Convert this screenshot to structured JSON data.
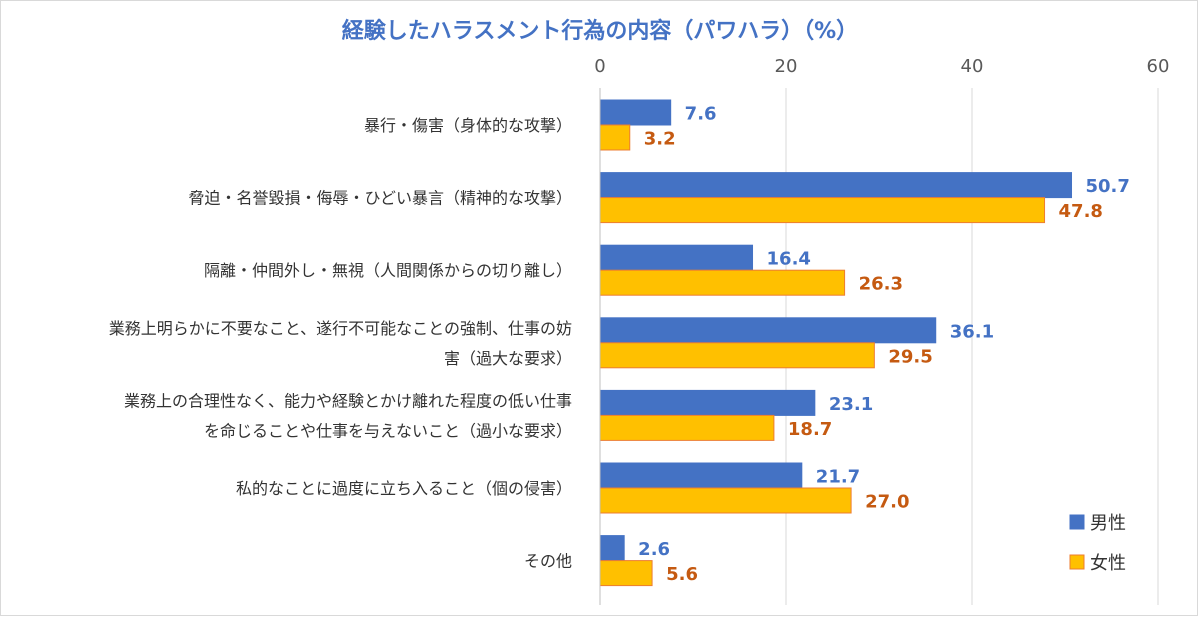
{
  "chart_data": {
    "type": "bar",
    "orientation": "horizontal",
    "title": "経験したハラスメント行為の内容（パワハラ）（%）",
    "categories": [
      [
        "暴行・傷害（身体的な攻撃）"
      ],
      [
        "脅迫・名誉毀損・侮辱・ひどい暴言（精神的な攻撃）"
      ],
      [
        "隔離・仲間外し・無視（人間関係からの切り離し）"
      ],
      [
        "業務上明らかに不要なこと、遂行不可能なことの強制、仕事の妨",
        "害（過大な要求）"
      ],
      [
        "業務上の合理性なく、能力や経験とかけ離れた程度の低い仕事",
        "を命じることや仕事を与えないこと（過小な要求）"
      ],
      [
        "私的なことに過度に立ち入ること（個の侵害）"
      ],
      [
        "その他"
      ]
    ],
    "series": [
      {
        "name": "男性",
        "values": [
          7.6,
          50.7,
          16.4,
          36.1,
          23.1,
          21.7,
          2.6
        ],
        "labels": [
          "7.6",
          "50.7",
          "16.4",
          "36.1",
          "23.1",
          "21.7",
          "2.6"
        ],
        "color": "#4472c4",
        "label_color": "#4472c4"
      },
      {
        "name": "女性",
        "values": [
          3.2,
          47.8,
          26.3,
          29.5,
          18.7,
          27.0,
          5.6
        ],
        "labels": [
          "3.2",
          "47.8",
          "26.3",
          "29.5",
          "18.7",
          "27.0",
          "5.6"
        ],
        "color": "#ffc000",
        "border_color": "#ed7d31",
        "label_color": "#c55a11"
      }
    ],
    "xlim": [
      0,
      60
    ],
    "ticks": [
      "0",
      "20",
      "40",
      "60"
    ],
    "xaxis_position": "top",
    "grid": true,
    "legend": "bottom-right",
    "title_color": "#4472c4"
  }
}
